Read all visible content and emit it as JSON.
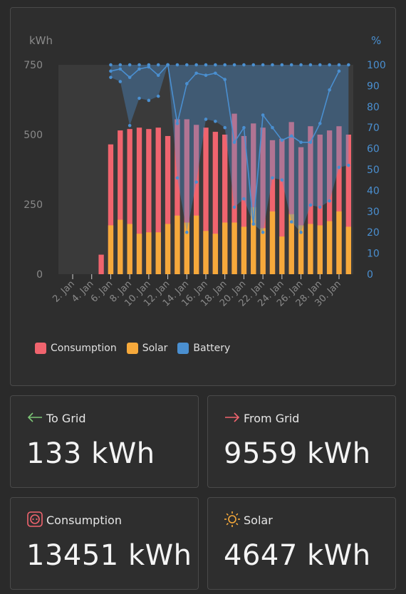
{
  "chart_data": {
    "type": "bar",
    "y_left_unit": "kWh",
    "y_right_unit": "%",
    "y_left_ticks": [
      "750",
      "500",
      "250",
      "0"
    ],
    "y_left_range": [
      0,
      750
    ],
    "y_right_ticks": [
      "100",
      "90",
      "80",
      "70",
      "60",
      "50",
      "40",
      "30",
      "20",
      "10",
      "0"
    ],
    "y_right_range": [
      0,
      100
    ],
    "x_tick_labels": [
      "2. Jan",
      "4. Jan",
      "6. Jan",
      "8. Jan",
      "10. Jan",
      "12. Jan",
      "14. Jan",
      "16. Jan",
      "18. Jan",
      "20. Jan",
      "22. Jan",
      "24. Jan",
      "26. Jan",
      "28. Jan",
      "30. Jan"
    ],
    "days": [
      1,
      2,
      3,
      4,
      5,
      6,
      7,
      8,
      9,
      10,
      11,
      12,
      13,
      14,
      15,
      16,
      17,
      18,
      19,
      20,
      21,
      22,
      23,
      24,
      25,
      26,
      27,
      28,
      29,
      30,
      31
    ],
    "series": [
      {
        "name": "Consumption",
        "color": "#f0646e",
        "values": [
          0,
          0,
          0,
          0,
          70,
          465,
          515,
          520,
          525,
          520,
          525,
          495,
          555,
          555,
          535,
          525,
          510,
          500,
          575,
          495,
          540,
          525,
          480,
          485,
          545,
          455,
          530,
          500,
          515,
          530,
          500
        ]
      },
      {
        "name": "Solar",
        "color": "#f6a93b",
        "values": [
          0,
          0,
          0,
          0,
          0,
          175,
          195,
          180,
          145,
          150,
          150,
          180,
          210,
          185,
          210,
          155,
          145,
          185,
          185,
          170,
          240,
          165,
          225,
          135,
          215,
          175,
          180,
          175,
          190,
          225,
          170
        ]
      },
      {
        "name": "Battery",
        "color": "#4a8fd0",
        "max": [
          null,
          null,
          null,
          null,
          null,
          100,
          100,
          100,
          100,
          100,
          100,
          100,
          100,
          100,
          100,
          100,
          100,
          100,
          100,
          100,
          100,
          100,
          100,
          100,
          100,
          100,
          100,
          100,
          100,
          100,
          100
        ],
        "min": [
          null,
          null,
          null,
          null,
          null,
          94,
          92,
          71,
          84,
          83,
          85,
          100,
          46,
          20,
          44,
          74,
          73,
          70,
          32,
          36,
          24,
          20,
          46,
          45,
          25,
          20,
          33,
          32,
          35,
          51,
          52
        ],
        "avg": [
          null,
          null,
          null,
          null,
          null,
          97,
          98,
          94,
          98,
          99,
          95,
          100,
          72,
          91,
          96,
          95,
          96,
          93,
          63,
          70,
          24,
          76,
          70,
          64,
          66,
          63,
          63,
          72,
          88,
          97,
          null
        ]
      }
    ]
  },
  "legend": {
    "consumption": "Consumption",
    "solar": "Solar",
    "battery": "Battery"
  },
  "stats": {
    "to_grid": {
      "label": "To Grid",
      "value": "133 kWh",
      "color": "#7cc576"
    },
    "from_grid": {
      "label": "From Grid",
      "value": "9559 kWh",
      "color": "#f0646e"
    },
    "consumption": {
      "label": "Consumption",
      "value": "13451 kWh",
      "color": "#f0646e"
    },
    "solar": {
      "label": "Solar",
      "value": "4647 kWh",
      "color": "#f6a93b"
    }
  }
}
